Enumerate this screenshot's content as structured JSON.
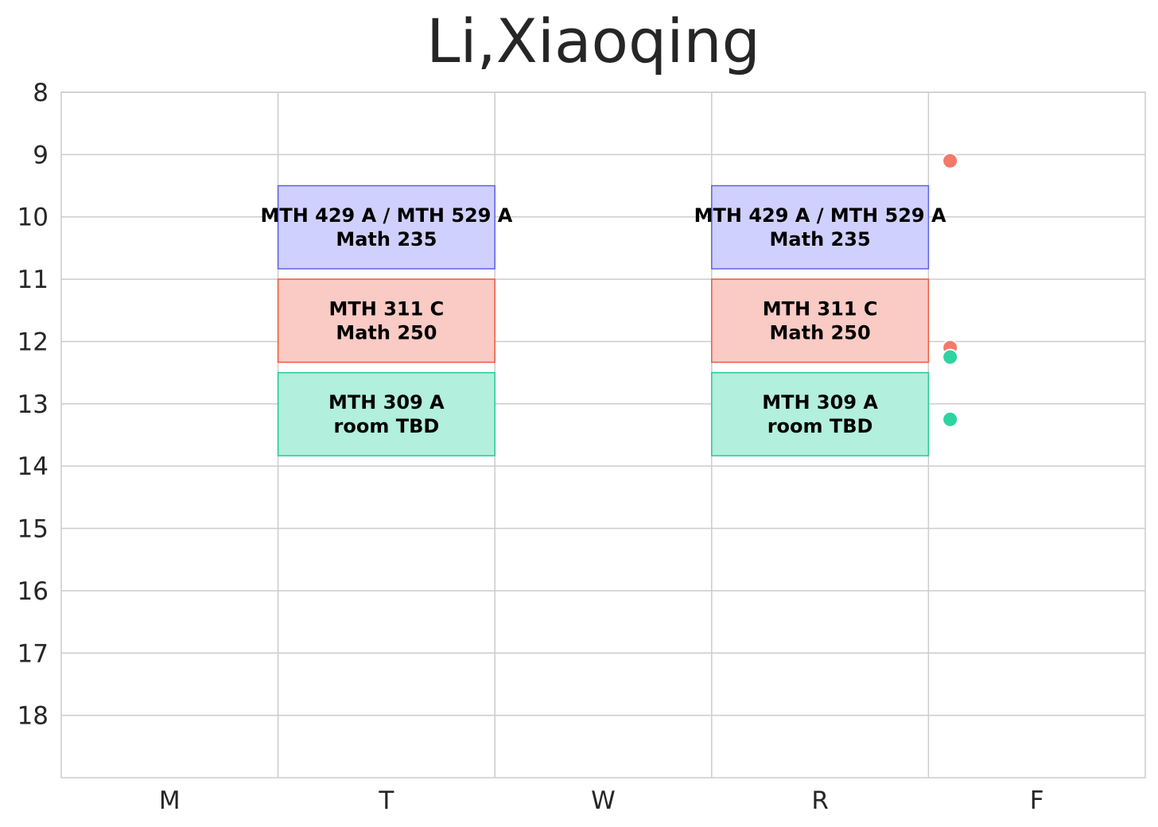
{
  "chart_data": {
    "type": "schedule",
    "title": "Li,Xiaoqing",
    "days": [
      "M",
      "T",
      "W",
      "R",
      "F"
    ],
    "hour_ticks": [
      "8",
      "9",
      "10",
      "11",
      "12",
      "13",
      "14",
      "15",
      "16",
      "17",
      "18"
    ],
    "ylim": [
      8,
      19
    ],
    "y_inverted": true,
    "grid": true,
    "colors": {
      "blue": {
        "fill": "#d0d0ff",
        "stroke": "#5f62e0"
      },
      "red": {
        "fill": "#f9cbc4",
        "stroke": "#ee5a3c"
      },
      "green": {
        "fill": "#b2efdc",
        "stroke": "#26c896"
      }
    },
    "blocks": [
      {
        "day": "T",
        "start": 9.5,
        "end": 10.833,
        "line1": "MTH 429 A / MTH 529 A",
        "line2": "Math 235",
        "color": "blue"
      },
      {
        "day": "T",
        "start": 11.0,
        "end": 12.333,
        "line1": "MTH 311 C",
        "line2": "Math 250",
        "color": "red"
      },
      {
        "day": "T",
        "start": 12.5,
        "end": 13.833,
        "line1": "MTH 309 A",
        "line2": "room TBD",
        "color": "green"
      },
      {
        "day": "R",
        "start": 9.5,
        "end": 10.833,
        "line1": "MTH 429 A / MTH 529 A",
        "line2": "Math 235",
        "color": "blue"
      },
      {
        "day": "R",
        "start": 11.0,
        "end": 12.333,
        "line1": "MTH 311 C",
        "line2": "Math 250",
        "color": "red"
      },
      {
        "day": "R",
        "start": 12.5,
        "end": 13.833,
        "line1": "MTH 309 A",
        "line2": "room TBD",
        "color": "green"
      }
    ],
    "points": [
      {
        "day_pos": 4.1,
        "y": 9.1,
        "color": "#f47a68"
      },
      {
        "day_pos": 4.1,
        "y": 12.1,
        "color": "#f47a68"
      },
      {
        "day_pos": 4.1,
        "y": 12.25,
        "color": "#2ed3a2"
      },
      {
        "day_pos": 4.1,
        "y": 13.25,
        "color": "#2ed3a2"
      }
    ]
  }
}
